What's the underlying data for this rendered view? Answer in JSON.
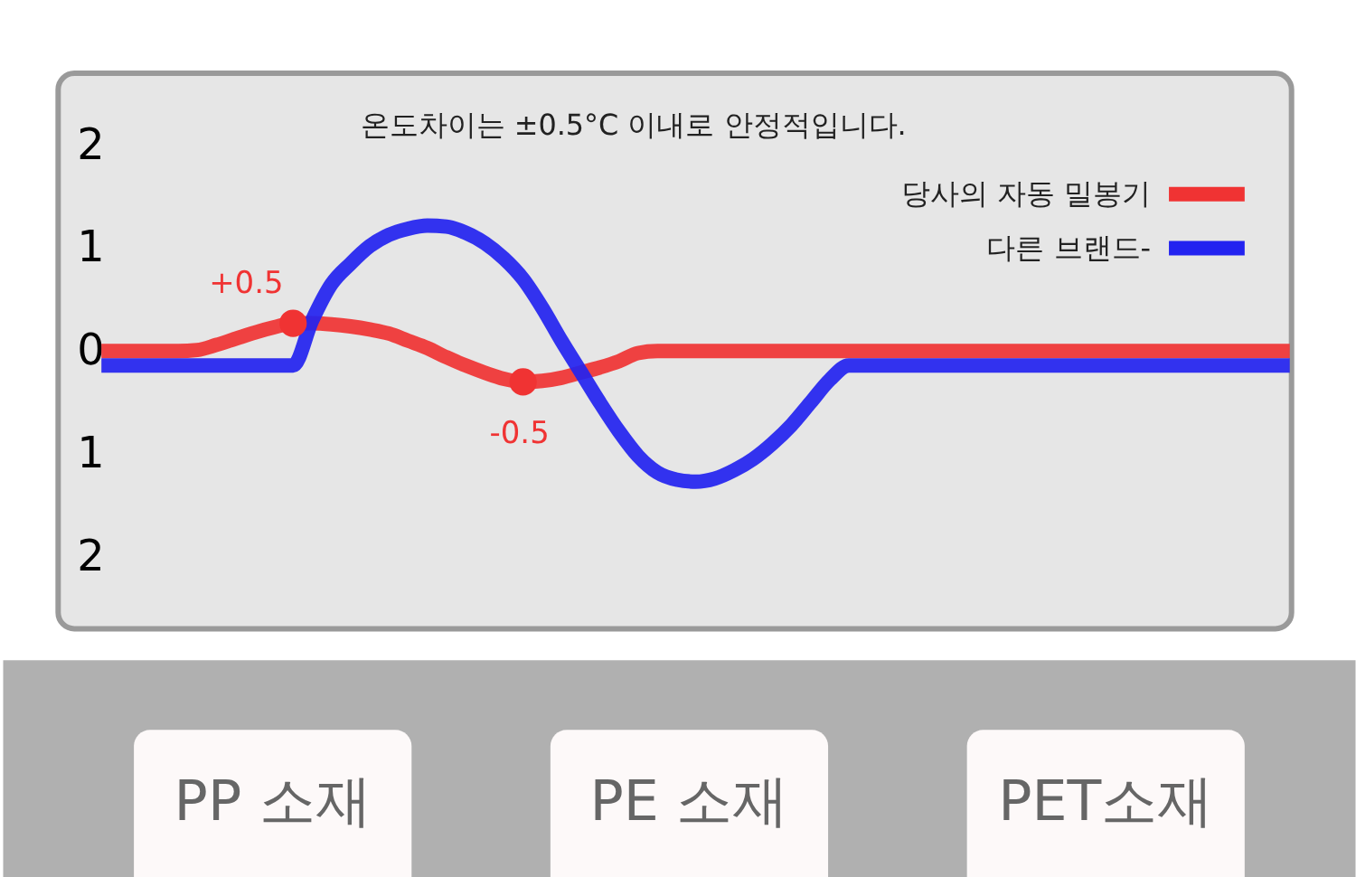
{
  "chart_data": [
    {
      "type": "line",
      "title": "온도차이는 ±0.5°C 이내로 안정적입니다.",
      "categories": [
        null,
        null,
        null,
        null,
        null,
        null,
        null,
        null,
        null,
        null,
        null,
        null,
        null,
        null,
        null,
        null,
        null,
        null,
        null,
        null,
        null,
        null,
        null,
        null,
        null,
        null,
        null,
        null,
        null,
        null,
        null,
        null,
        null,
        null,
        null,
        null,
        null,
        null,
        null,
        null,
        null,
        null,
        null,
        null,
        null,
        null,
        null,
        null,
        null,
        null,
        null,
        null,
        null,
        null,
        null,
        null,
        null,
        null,
        null,
        null,
        null,
        null,
        null
      ],
      "series": [
        {
          "name": "당사의 자동 밀봉기",
          "color": "#f03333",
          "values": [
            0,
            0,
            0,
            0,
            0,
            0.01,
            0.06,
            0.12,
            0.18,
            0.23,
            0.27,
            0.27,
            0.26,
            0.24,
            0.21,
            0.17,
            0.1,
            0.03,
            -0.06,
            -0.14,
            -0.21,
            -0.27,
            -0.3,
            -0.29,
            -0.26,
            -0.21,
            -0.16,
            -0.1,
            -0.02,
            0,
            0,
            0,
            0,
            0,
            0,
            0,
            0,
            0,
            0,
            0,
            0,
            0,
            0,
            0,
            0,
            0,
            0,
            0,
            0,
            0,
            0,
            0,
            0,
            0,
            0,
            0,
            0,
            0,
            0,
            0,
            0,
            0,
            0
          ]
        },
        {
          "name": "다른 브랜드-",
          "color": "#2323f0",
          "values": [
            -0.14,
            -0.14,
            -0.14,
            -0.14,
            -0.14,
            -0.14,
            -0.14,
            -0.14,
            -0.14,
            -0.14,
            -0.14,
            0.3,
            0.65,
            0.85,
            1.02,
            1.13,
            1.19,
            1.22,
            1.21,
            1.15,
            1.05,
            0.9,
            0.7,
            0.42,
            0.1,
            -0.2,
            -0.5,
            -0.78,
            -1.02,
            -1.18,
            -1.25,
            -1.27,
            -1.24,
            -1.16,
            -1.05,
            -0.9,
            -0.72,
            -0.5,
            -0.28,
            -0.14,
            -0.14,
            -0.14,
            -0.14,
            -0.14,
            -0.14,
            -0.14,
            -0.14,
            -0.14,
            -0.14,
            -0.14,
            -0.14,
            -0.14,
            -0.14,
            -0.14,
            -0.14,
            -0.14,
            -0.14,
            -0.14,
            -0.14,
            -0.14,
            -0.14,
            -0.14,
            -0.14
          ]
        },
        {
          "type": "scatter",
          "color": "#f03333",
          "values": [
            null,
            null,
            null,
            null,
            null,
            null,
            null,
            null,
            null,
            null,
            0.27,
            null,
            null,
            null,
            null,
            null,
            null,
            null,
            null,
            null,
            null,
            null,
            -0.3,
            null,
            null,
            null,
            null,
            null,
            null,
            null,
            null,
            null,
            null,
            null,
            null,
            null,
            null,
            null,
            null,
            null,
            null,
            null,
            null,
            null,
            null,
            null,
            null,
            null,
            null,
            null,
            null,
            null,
            null,
            null,
            null,
            null,
            null,
            null,
            null,
            null,
            null,
            null,
            null
          ]
        }
      ],
      "annotations": [
        {
          "text": "+0.5",
          "y": 0.27
        },
        {
          "text": "-0.5",
          "y": -0.3
        }
      ],
      "ylim": [
        -2.7,
        2.7
      ],
      "yticks": [
        2,
        1,
        0,
        {
          "value": -1,
          "label": "1"
        },
        {
          "value": -2,
          "label": "2"
        }
      ],
      "tick_labels": "y",
      "legend": "top right"
    },
    {
      "type": "other",
      "annotations": [
        "PP 소재",
        "PE 소재",
        "PET소재"
      ]
    }
  ]
}
